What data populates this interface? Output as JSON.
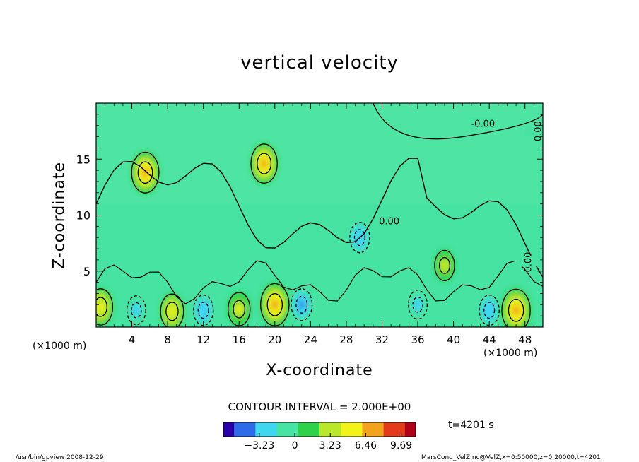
{
  "chart_data": {
    "type": "heatmap",
    "title": "vertical velocity",
    "xlabel": "X-coordinate",
    "ylabel": "Z-coordinate",
    "x_unit": "(×1000 m)",
    "y_unit": "(×1000 m)",
    "xlim": [
      0,
      50
    ],
    "ylim": [
      0,
      20
    ],
    "x_ticks": [
      4,
      8,
      12,
      16,
      20,
      24,
      28,
      32,
      36,
      40,
      44,
      48
    ],
    "y_ticks": [
      5,
      10,
      15
    ],
    "contour_interval_label": "CONTOUR INTERVAL = 2.000E+00",
    "contour_labels": [
      "0.00",
      "-0.00",
      "0.00",
      "0.00"
    ],
    "colorbar": {
      "ticks": [
        -3.23,
        0,
        3.23,
        6.46,
        9.69
      ],
      "tick_labels": [
        "−3.23",
        "0",
        "3.23",
        "6.46",
        "9.69"
      ],
      "range": [
        -6.5,
        11
      ],
      "colors": [
        "#2a00a8",
        "#2d6be8",
        "#3fd6f0",
        "#46e3a2",
        "#2ed24a",
        "#b9e82b",
        "#f3f31a",
        "#f2a21d",
        "#e23a1a",
        "#b0001a"
      ]
    },
    "time_label": "t=4201 s",
    "features": [
      {
        "x": 5.5,
        "z": 13.8,
        "w": 6.5
      },
      {
        "x": 18.8,
        "z": 14.6,
        "w": 6.0
      },
      {
        "x": 20.0,
        "z": 2.0,
        "w": 7.0
      },
      {
        "x": 12.0,
        "z": 1.5,
        "w": -3.0
      },
      {
        "x": 8.5,
        "z": 1.4,
        "w": 4.5
      },
      {
        "x": 4.5,
        "z": 1.5,
        "w": -2.5
      },
      {
        "x": 0.5,
        "z": 1.8,
        "w": 5.0
      },
      {
        "x": 16.0,
        "z": 1.6,
        "w": 4.0
      },
      {
        "x": 23.0,
        "z": 2.0,
        "w": -3.5
      },
      {
        "x": 29.5,
        "z": 8.0,
        "w": -3.0
      },
      {
        "x": 44.0,
        "z": 1.5,
        "w": -3.0
      },
      {
        "x": 47.0,
        "z": 1.5,
        "w": 7.0
      },
      {
        "x": 36.0,
        "z": 2.0,
        "w": -2.5
      },
      {
        "x": 39.0,
        "z": 5.5,
        "w": 3.0
      }
    ]
  },
  "footer": {
    "left": "/usr/bin/gpview   2008-12-29",
    "right": "MarsCond_VelZ.nc@VelZ,x=0:50000,z=0:20000,t=4201"
  }
}
